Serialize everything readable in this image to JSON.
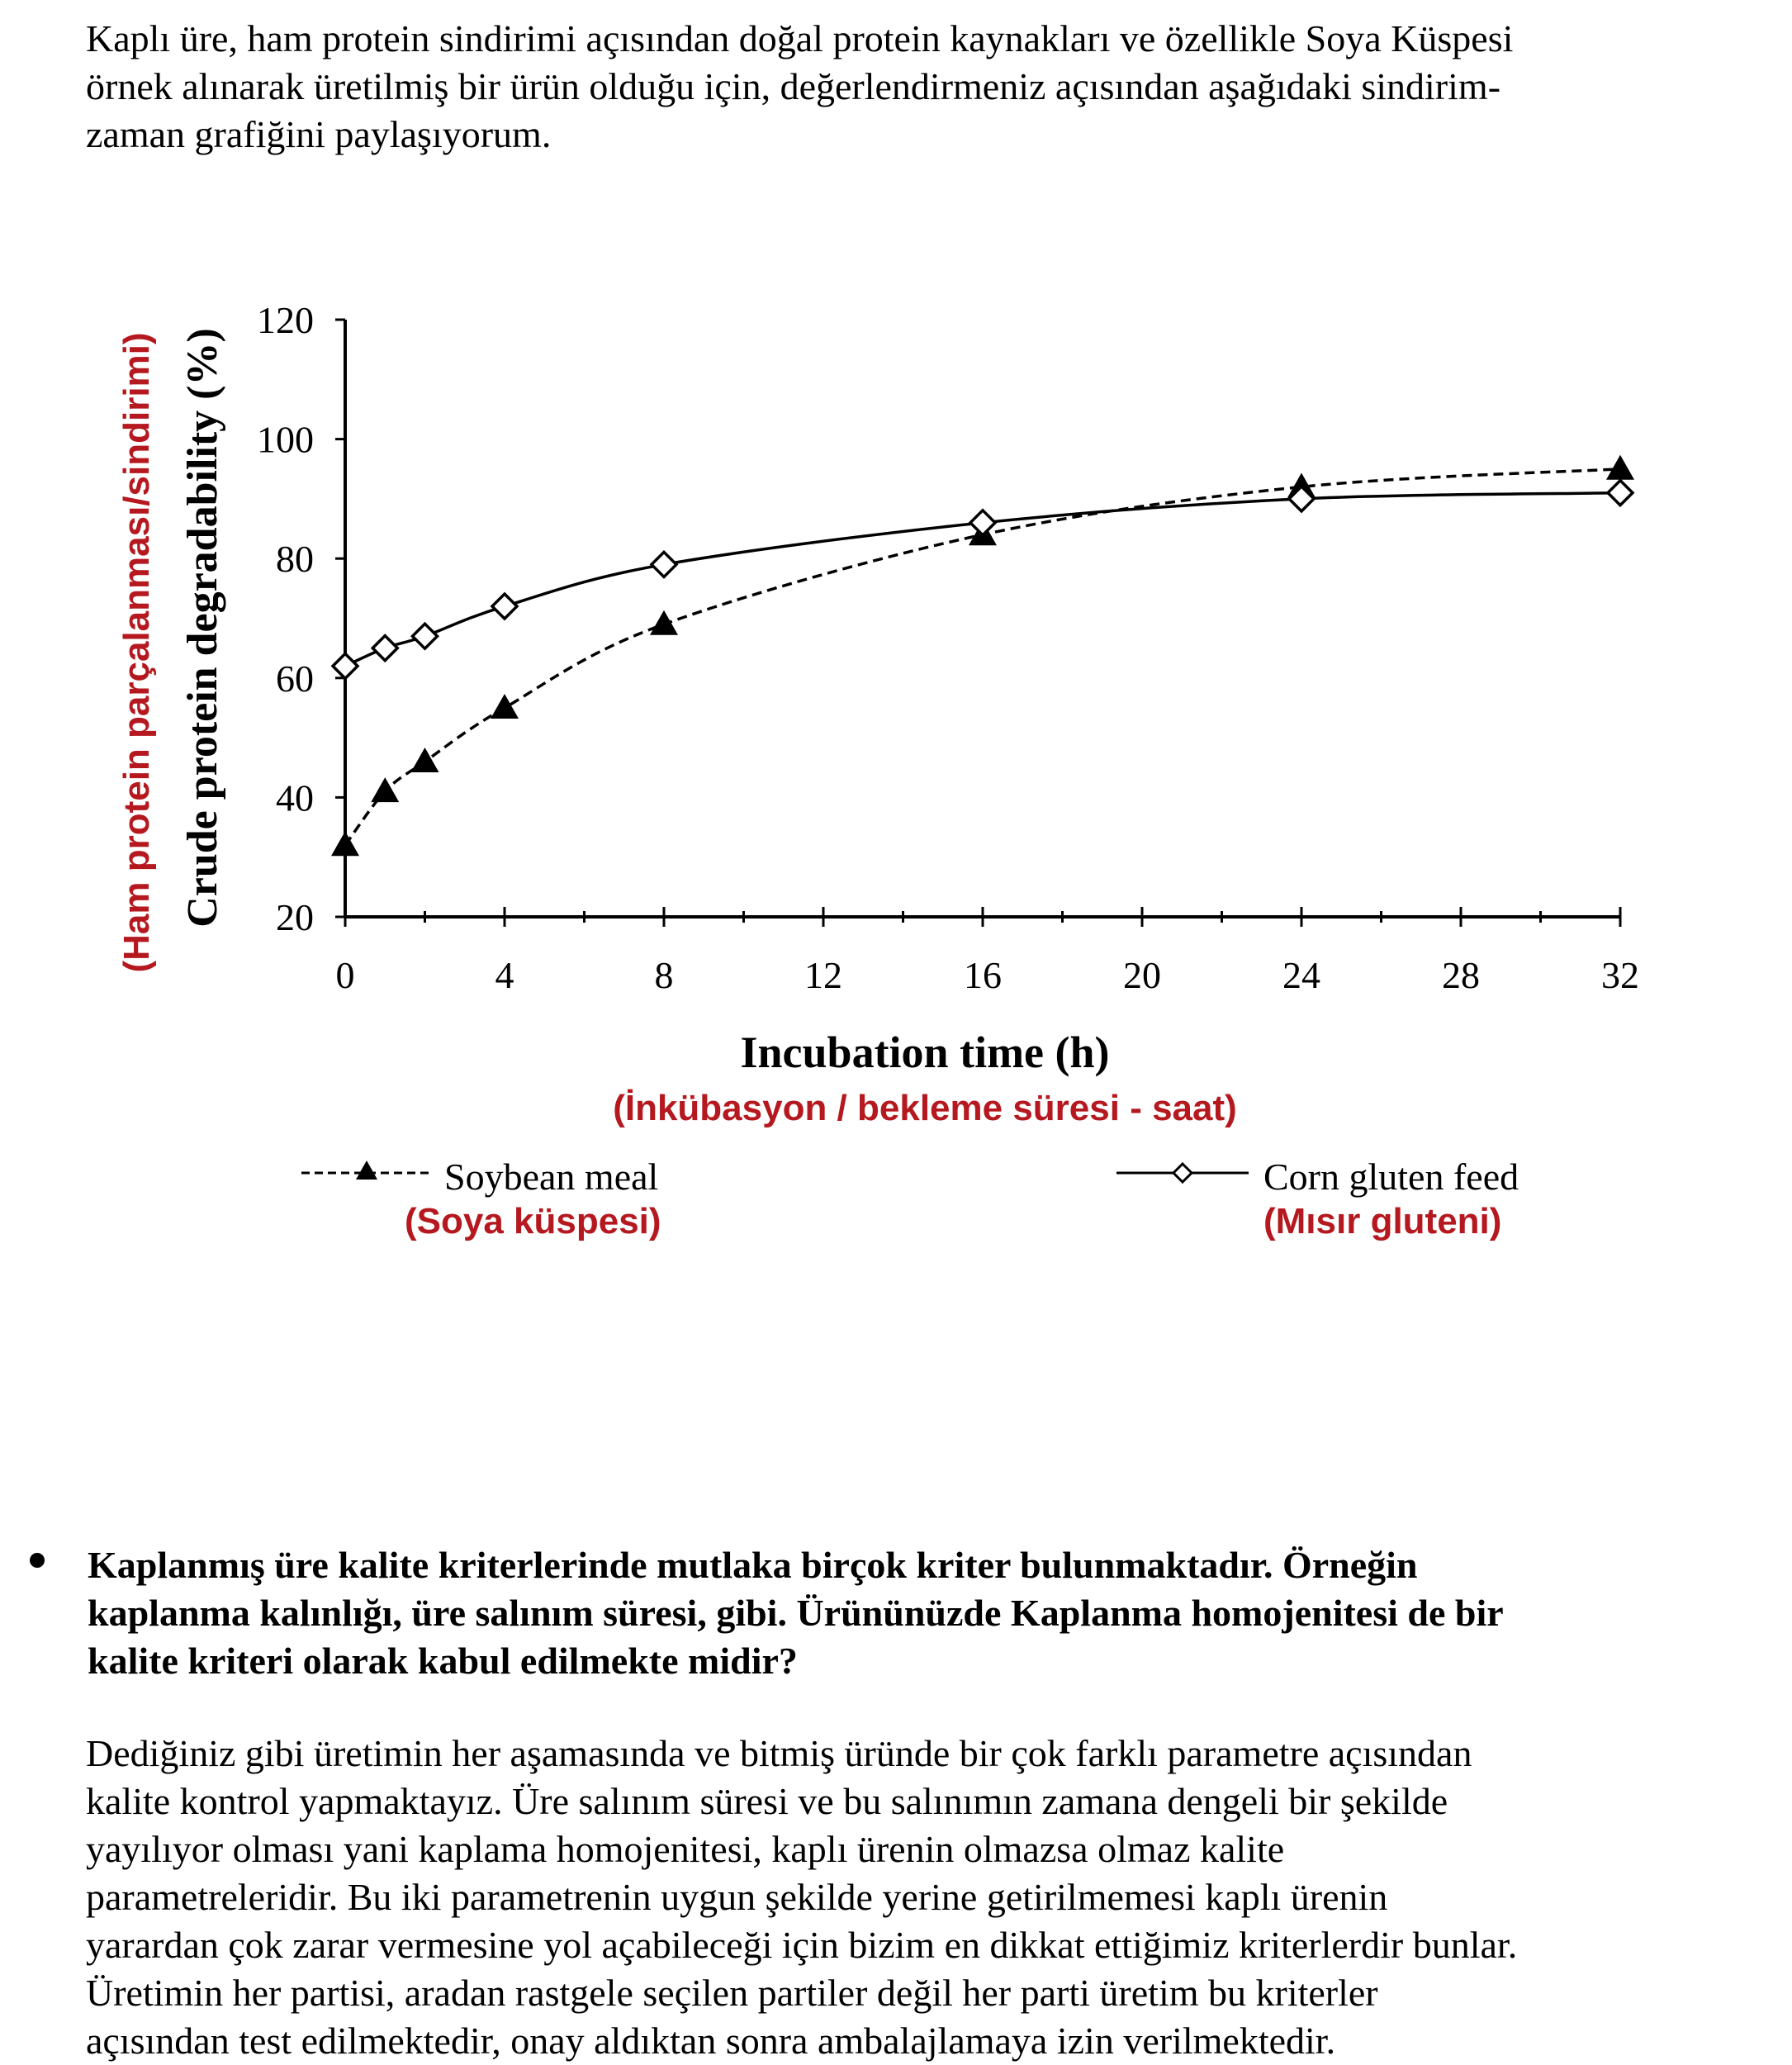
{
  "intro_text": "Kaplı üre, ham protein sindirimi açısından doğal protein kaynakları ve özellikle Soya Küspesi\nörnek alınarak üretilmiş bir ürün olduğu için, değerlendirmeniz açısından aşağıdaki sindirim-\nzaman grafiğini paylaşıyorum.",
  "chart_data": {
    "type": "line",
    "title": "",
    "xlabel": "Incubation time (h)",
    "xlabel_tr": "(İnkübasyon / bekleme süresi - saat)",
    "ylabel": "Crude protein degradability (%)",
    "ylabel_tr": "(Ham protein parçalanması/sindirimi)",
    "xlim": [
      0,
      32
    ],
    "ylim": [
      20,
      120
    ],
    "x_ticks": [
      "0",
      "4",
      "8",
      "12",
      "16",
      "20",
      "24",
      "28",
      "32"
    ],
    "y_ticks": [
      "20",
      "40",
      "60",
      "80",
      "100",
      "120"
    ],
    "grid": false,
    "legend_position": "bottom",
    "series": [
      {
        "name": "Soybean meal",
        "name_tr": "(Soya küspesi)",
        "marker": "filled-triangle",
        "line_style": "dashed",
        "color": "#000000",
        "x": [
          0,
          1,
          2,
          4,
          8,
          16,
          24,
          32
        ],
        "y": [
          32,
          41,
          46,
          55,
          69,
          84,
          92,
          95
        ]
      },
      {
        "name": "Corn gluten feed",
        "name_tr": "(Mısır gluteni)",
        "marker": "open-diamond",
        "line_style": "solid",
        "color": "#000000",
        "x": [
          0,
          1,
          2,
          4,
          8,
          16,
          24,
          32
        ],
        "y": [
          62,
          65,
          67,
          72,
          79,
          86,
          90,
          91
        ]
      }
    ]
  },
  "colors": {
    "annotation_red": "#b5191f",
    "text": "#000000"
  },
  "bullet_text": "Kaplanmış üre kalite kriterlerinde  mutlaka birçok kriter bulunmaktadır.  Örneğin\nkaplanma kalınlığı, üre salınım süresi, gibi. Ürününüzde  Kaplanma homojenitesi de bir\nkalite kriteri olarak kabul edilmekte midir?",
  "answer_text": "Dediğiniz gibi üretimin her aşamasında ve bitmiş üründe bir çok farklı parametre açısından\nkalite kontrol yapmaktayız. Üre salınım süresi ve bu salınımın zamana dengeli bir şekilde\nyayılıyor olması yani kaplama homojenitesi, kaplı ürenin olmazsa olmaz kalite\nparametreleridir. Bu iki parametrenin uygun şekilde yerine getirilmemesi kaplı ürenin\nyarardan çok zarar vermesine yol açabileceği için bizim en dikkat ettiğimiz kriterlerdir bunlar.\nÜretimin her partisi, aradan rastgele seçilen partiler değil her parti üretim bu kriterler\naçısından test edilmektedir, onay aldıktan sonra ambalajlamaya izin verilmektedir."
}
